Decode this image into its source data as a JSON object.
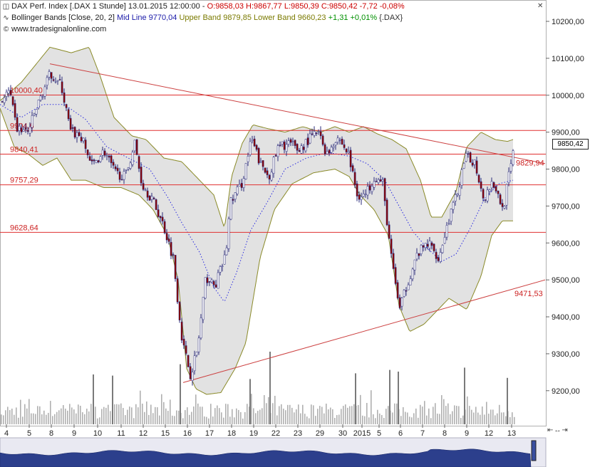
{
  "header": {
    "line1": {
      "instrument": "DAX Perf. Index [.DAX  1 Stunde] 13.01.2015 12:00:00 - ",
      "ohlc": "O:9858,03 H:9867,77 L:9850,39 C:9850,42 -7,72 -0,08%"
    },
    "line2": {
      "indicator": "Bollinger Bands [Close, 20, 2] ",
      "mid": "Mid Line 9770,04 ",
      "bands": "Upper Band 9879,85 Lower Band 9660,23 ",
      "change": "+1,31 +0,01% ",
      "symbol": "{.DAX}"
    },
    "line3": "www.tradesignalonline.com"
  },
  "colors": {
    "candle_up": "#ffffff",
    "candle_down": "#8b0000",
    "candle_wick": "#2a2a7a",
    "band_fill": "#e2e2e2",
    "band_line": "#8a8a28",
    "mid_line": "#2a2ae0",
    "level_line": "#e03030",
    "trend_line": "#cc4040",
    "volume": "#b0b0b0"
  },
  "icons": {
    "line1": "chart-icon",
    "line2": "indicator-icon",
    "line3": "copyright-icon",
    "close": "close-icon"
  },
  "last_price_label": "9850,42",
  "chart_data": {
    "type": "candlestick",
    "y_ticks": [
      "10200,00",
      "10100,00",
      "10000,00",
      "9900,00",
      "9800,00",
      "9700,00",
      "9600,00",
      "9500,00",
      "9400,00",
      "9300,00",
      "9200,00"
    ],
    "ylim": [
      9150,
      10240
    ],
    "x_ticks": [
      "4",
      "5",
      "8",
      "9",
      "10",
      "11",
      "12",
      "15",
      "16",
      "17",
      "18",
      "19",
      "22",
      "23",
      "29",
      "30",
      "2015",
      "5",
      "6",
      "7",
      "8",
      "9",
      "12",
      "13"
    ],
    "horizontal_levels": [
      {
        "label": "10000,40",
        "value": 10000.4
      },
      {
        "label": "9904,6",
        "value": 9904.6
      },
      {
        "label": "9840,41",
        "value": 9840.41
      },
      {
        "label": "9757,29",
        "value": 9757.29
      },
      {
        "label": "9628,64",
        "value": 9628.64
      }
    ],
    "trend_lines": [
      {
        "name": "resistance",
        "from": [
          70,
          10085
        ],
        "to": [
          765,
          9815
        ],
        "label": "9829,94"
      },
      {
        "name": "support",
        "from": [
          257,
          9222
        ],
        "to": [
          765,
          9500
        ],
        "label": "9471,53"
      }
    ],
    "close_anchors": [
      [
        0,
        9985
      ],
      [
        12,
        10010
      ],
      [
        22,
        9910
      ],
      [
        38,
        9900
      ],
      [
        55,
        9990
      ],
      [
        70,
        10060
      ],
      [
        85,
        10025
      ],
      [
        98,
        9900
      ],
      [
        112,
        9890
      ],
      [
        128,
        9810
      ],
      [
        145,
        9850
      ],
      [
        160,
        9790
      ],
      [
        175,
        9780
      ],
      [
        188,
        9870
      ],
      [
        198,
        9760
      ],
      [
        212,
        9720
      ],
      [
        228,
        9650
      ],
      [
        242,
        9560
      ],
      [
        255,
        9330
      ],
      [
        266,
        9245
      ],
      [
        276,
        9310
      ],
      [
        288,
        9510
      ],
      [
        300,
        9480
      ],
      [
        316,
        9570
      ],
      [
        322,
        9710
      ],
      [
        338,
        9760
      ],
      [
        352,
        9880
      ],
      [
        365,
        9810
      ],
      [
        376,
        9780
      ],
      [
        390,
        9860
      ],
      [
        405,
        9870
      ],
      [
        418,
        9850
      ],
      [
        432,
        9880
      ],
      [
        445,
        9900
      ],
      [
        458,
        9840
      ],
      [
        472,
        9890
      ],
      [
        488,
        9840
      ],
      [
        500,
        9730
      ],
      [
        512,
        9730
      ],
      [
        524,
        9780
      ],
      [
        536,
        9760
      ],
      [
        548,
        9560
      ],
      [
        560,
        9420
      ],
      [
        572,
        9500
      ],
      [
        585,
        9570
      ],
      [
        600,
        9600
      ],
      [
        615,
        9560
      ],
      [
        628,
        9660
      ],
      [
        640,
        9730
      ],
      [
        652,
        9830
      ],
      [
        665,
        9820
      ],
      [
        678,
        9720
      ],
      [
        690,
        9770
      ],
      [
        705,
        9690
      ],
      [
        712,
        9770
      ],
      [
        720,
        9850
      ]
    ],
    "upper_band_anchors": [
      [
        0,
        9985
      ],
      [
        30,
        10035
      ],
      [
        70,
        10130
      ],
      [
        100,
        10115
      ],
      [
        125,
        10130
      ],
      [
        140,
        10055
      ],
      [
        160,
        9940
      ],
      [
        185,
        9890
      ],
      [
        205,
        9880
      ],
      [
        230,
        9830
      ],
      [
        255,
        9820
      ],
      [
        280,
        9770
      ],
      [
        300,
        9730
      ],
      [
        315,
        9640
      ],
      [
        325,
        9780
      ],
      [
        340,
        9870
      ],
      [
        355,
        9920
      ],
      [
        375,
        9910
      ],
      [
        400,
        9900
      ],
      [
        425,
        9915
      ],
      [
        450,
        9900
      ],
      [
        470,
        9915
      ],
      [
        490,
        9900
      ],
      [
        510,
        9915
      ],
      [
        530,
        9895
      ],
      [
        550,
        9880
      ],
      [
        570,
        9855
      ],
      [
        590,
        9770
      ],
      [
        605,
        9670
      ],
      [
        620,
        9670
      ],
      [
        640,
        9740
      ],
      [
        655,
        9860
      ],
      [
        675,
        9900
      ],
      [
        695,
        9880
      ],
      [
        712,
        9875
      ],
      [
        720,
        9880
      ]
    ],
    "lower_band_anchors": [
      [
        0,
        9965
      ],
      [
        20,
        9860
      ],
      [
        40,
        9840
      ],
      [
        60,
        9810
      ],
      [
        80,
        9830
      ],
      [
        100,
        9770
      ],
      [
        120,
        9770
      ],
      [
        145,
        9750
      ],
      [
        170,
        9750
      ],
      [
        195,
        9730
      ],
      [
        215,
        9690
      ],
      [
        235,
        9620
      ],
      [
        250,
        9500
      ],
      [
        262,
        9260
      ],
      [
        275,
        9205
      ],
      [
        290,
        9190
      ],
      [
        310,
        9195
      ],
      [
        330,
        9260
      ],
      [
        345,
        9330
      ],
      [
        365,
        9560
      ],
      [
        385,
        9690
      ],
      [
        410,
        9760
      ],
      [
        440,
        9790
      ],
      [
        470,
        9800
      ],
      [
        490,
        9780
      ],
      [
        505,
        9730
      ],
      [
        525,
        9690
      ],
      [
        545,
        9620
      ],
      [
        560,
        9430
      ],
      [
        575,
        9360
      ],
      [
        595,
        9380
      ],
      [
        615,
        9420
      ],
      [
        630,
        9450
      ],
      [
        655,
        9420
      ],
      [
        675,
        9510
      ],
      [
        690,
        9620
      ],
      [
        705,
        9660
      ],
      [
        720,
        9660
      ]
    ],
    "mid_line_anchors": [
      [
        0,
        9975
      ],
      [
        30,
        9940
      ],
      [
        60,
        9975
      ],
      [
        90,
        9975
      ],
      [
        120,
        9935
      ],
      [
        150,
        9860
      ],
      [
        180,
        9830
      ],
      [
        210,
        9800
      ],
      [
        235,
        9725
      ],
      [
        255,
        9655
      ],
      [
        280,
        9575
      ],
      [
        300,
        9480
      ],
      [
        315,
        9440
      ],
      [
        332,
        9520
      ],
      [
        352,
        9635
      ],
      [
        375,
        9710
      ],
      [
        400,
        9800
      ],
      [
        430,
        9830
      ],
      [
        460,
        9845
      ],
      [
        490,
        9835
      ],
      [
        515,
        9815
      ],
      [
        540,
        9770
      ],
      [
        560,
        9700
      ],
      [
        580,
        9630
      ],
      [
        600,
        9585
      ],
      [
        620,
        9550
      ],
      [
        640,
        9570
      ],
      [
        660,
        9640
      ],
      [
        680,
        9720
      ],
      [
        700,
        9760
      ],
      [
        720,
        9770
      ]
    ],
    "volume_spikes": [
      [
        130,
        0.5
      ],
      [
        157,
        0.48
      ],
      [
        252,
        0.68
      ],
      [
        350,
        0.42
      ],
      [
        378,
        0.9
      ],
      [
        498,
        0.52
      ],
      [
        546,
        0.58
      ],
      [
        558,
        0.55
      ],
      [
        651,
        0.62
      ],
      [
        711,
        0.44
      ]
    ]
  }
}
